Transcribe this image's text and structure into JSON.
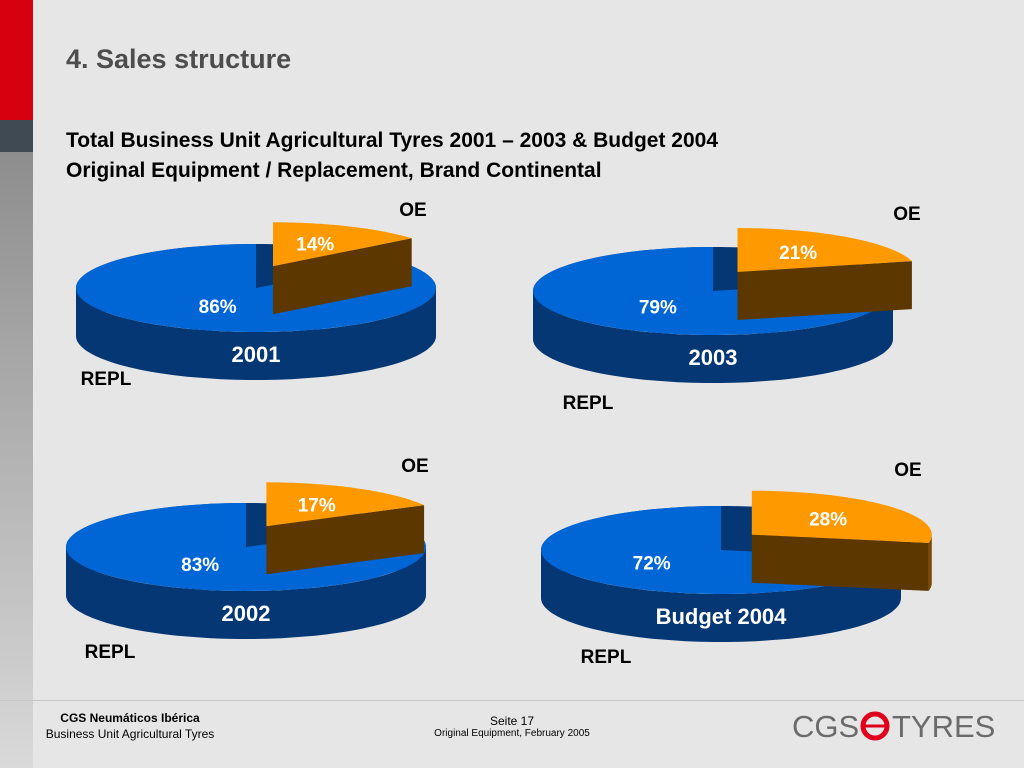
{
  "header": {
    "section_title": "4. Sales structure",
    "subtitle_line1": "Total Business Unit Agricultural Tyres 2001 – 2003 & Budget 2004",
    "subtitle_line2": "Original Equipment / Replacement, Brand Continental"
  },
  "colors": {
    "repl": "#0066d6",
    "oe": "#ff9900"
  },
  "chart_data": [
    {
      "type": "pie",
      "title": "2001",
      "slices": [
        {
          "name": "REPL",
          "value": 86,
          "label": "86%"
        },
        {
          "name": "OE",
          "value": 14,
          "label": "14%"
        }
      ]
    },
    {
      "type": "pie",
      "title": "2003",
      "slices": [
        {
          "name": "REPL",
          "value": 79,
          "label": "79%"
        },
        {
          "name": "OE",
          "value": 21,
          "label": "21%"
        }
      ]
    },
    {
      "type": "pie",
      "title": "2002",
      "slices": [
        {
          "name": "REPL",
          "value": 83,
          "label": "83%"
        },
        {
          "name": "OE",
          "value": 17,
          "label": "17%"
        }
      ]
    },
    {
      "type": "pie",
      "title": "Budget 2004",
      "slices": [
        {
          "name": "REPL",
          "value": 72,
          "label": "72%"
        },
        {
          "name": "OE",
          "value": 28,
          "label": "28%"
        }
      ]
    }
  ],
  "footer": {
    "company": "CGS Neumáticos Ibérica",
    "unit": "Business Unit Agricultural Tyres",
    "page": "Seite 17",
    "document": "Original Equipment, February 2005"
  },
  "logo": {
    "left_text": "CGS",
    "right_text": "TYRES"
  }
}
